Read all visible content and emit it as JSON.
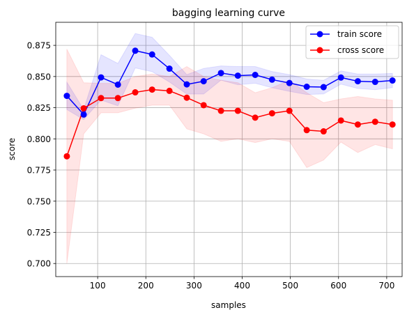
{
  "chart_data": {
    "type": "line",
    "title": "bagging learning curve",
    "xlabel": "samples",
    "ylabel": "score",
    "xlim": [
      13,
      732
    ],
    "ylim": [
      0.6895,
      0.8935
    ],
    "xticks": [
      100,
      200,
      300,
      400,
      500,
      600,
      700
    ],
    "xtick_labels": [
      "100",
      "200",
      "300",
      "400",
      "500",
      "600",
      "700"
    ],
    "yticks": [
      0.7,
      0.725,
      0.75,
      0.775,
      0.8,
      0.825,
      0.85,
      0.875
    ],
    "ytick_labels": [
      "0.700",
      "0.725",
      "0.750",
      "0.775",
      "0.800",
      "0.825",
      "0.850",
      "0.875"
    ],
    "grid": true,
    "legend_position": "top-right",
    "x": [
      36,
      71,
      107,
      142,
      178,
      213,
      249,
      285,
      320,
      356,
      391,
      427,
      462,
      498,
      534,
      569,
      605,
      640,
      676,
      712
    ],
    "series": [
      {
        "name": "train score",
        "color": "#0000ff",
        "values": [
          0.8345,
          0.8195,
          0.8493,
          0.8435,
          0.8707,
          0.8677,
          0.8563,
          0.8437,
          0.8462,
          0.8528,
          0.8507,
          0.8513,
          0.8475,
          0.8448,
          0.8418,
          0.8415,
          0.8492,
          0.8462,
          0.8457,
          0.8468
        ],
        "band_upper": [
          0.8455,
          0.8235,
          0.8675,
          0.8605,
          0.8845,
          0.8815,
          0.867,
          0.8515,
          0.8565,
          0.8585,
          0.858,
          0.858,
          0.854,
          0.8515,
          0.848,
          0.847,
          0.8545,
          0.852,
          0.852,
          0.8525
        ],
        "band_lower": [
          0.8235,
          0.8155,
          0.8311,
          0.8265,
          0.8569,
          0.8539,
          0.8456,
          0.8359,
          0.8359,
          0.8471,
          0.8434,
          0.8446,
          0.841,
          0.8381,
          0.8356,
          0.836,
          0.8439,
          0.8404,
          0.8394,
          0.8411
        ]
      },
      {
        "name": "cross score",
        "color": "#ff0000",
        "values": [
          0.786,
          0.8245,
          0.8327,
          0.8327,
          0.8373,
          0.8395,
          0.8385,
          0.833,
          0.827,
          0.8225,
          0.8225,
          0.817,
          0.8205,
          0.8225,
          0.807,
          0.806,
          0.8147,
          0.8115,
          0.8137,
          0.8115
        ],
        "band_upper": [
          0.872,
          0.845,
          0.8445,
          0.8445,
          0.85,
          0.852,
          0.85,
          0.858,
          0.85,
          0.847,
          0.845,
          0.837,
          0.841,
          0.847,
          0.837,
          0.829,
          0.832,
          0.834,
          0.832,
          0.831
        ],
        "band_lower": [
          0.7,
          0.804,
          0.8209,
          0.8209,
          0.8246,
          0.827,
          0.827,
          0.808,
          0.804,
          0.798,
          0.8,
          0.797,
          0.8,
          0.798,
          0.777,
          0.783,
          0.7974,
          0.789,
          0.7954,
          0.792
        ]
      }
    ]
  }
}
